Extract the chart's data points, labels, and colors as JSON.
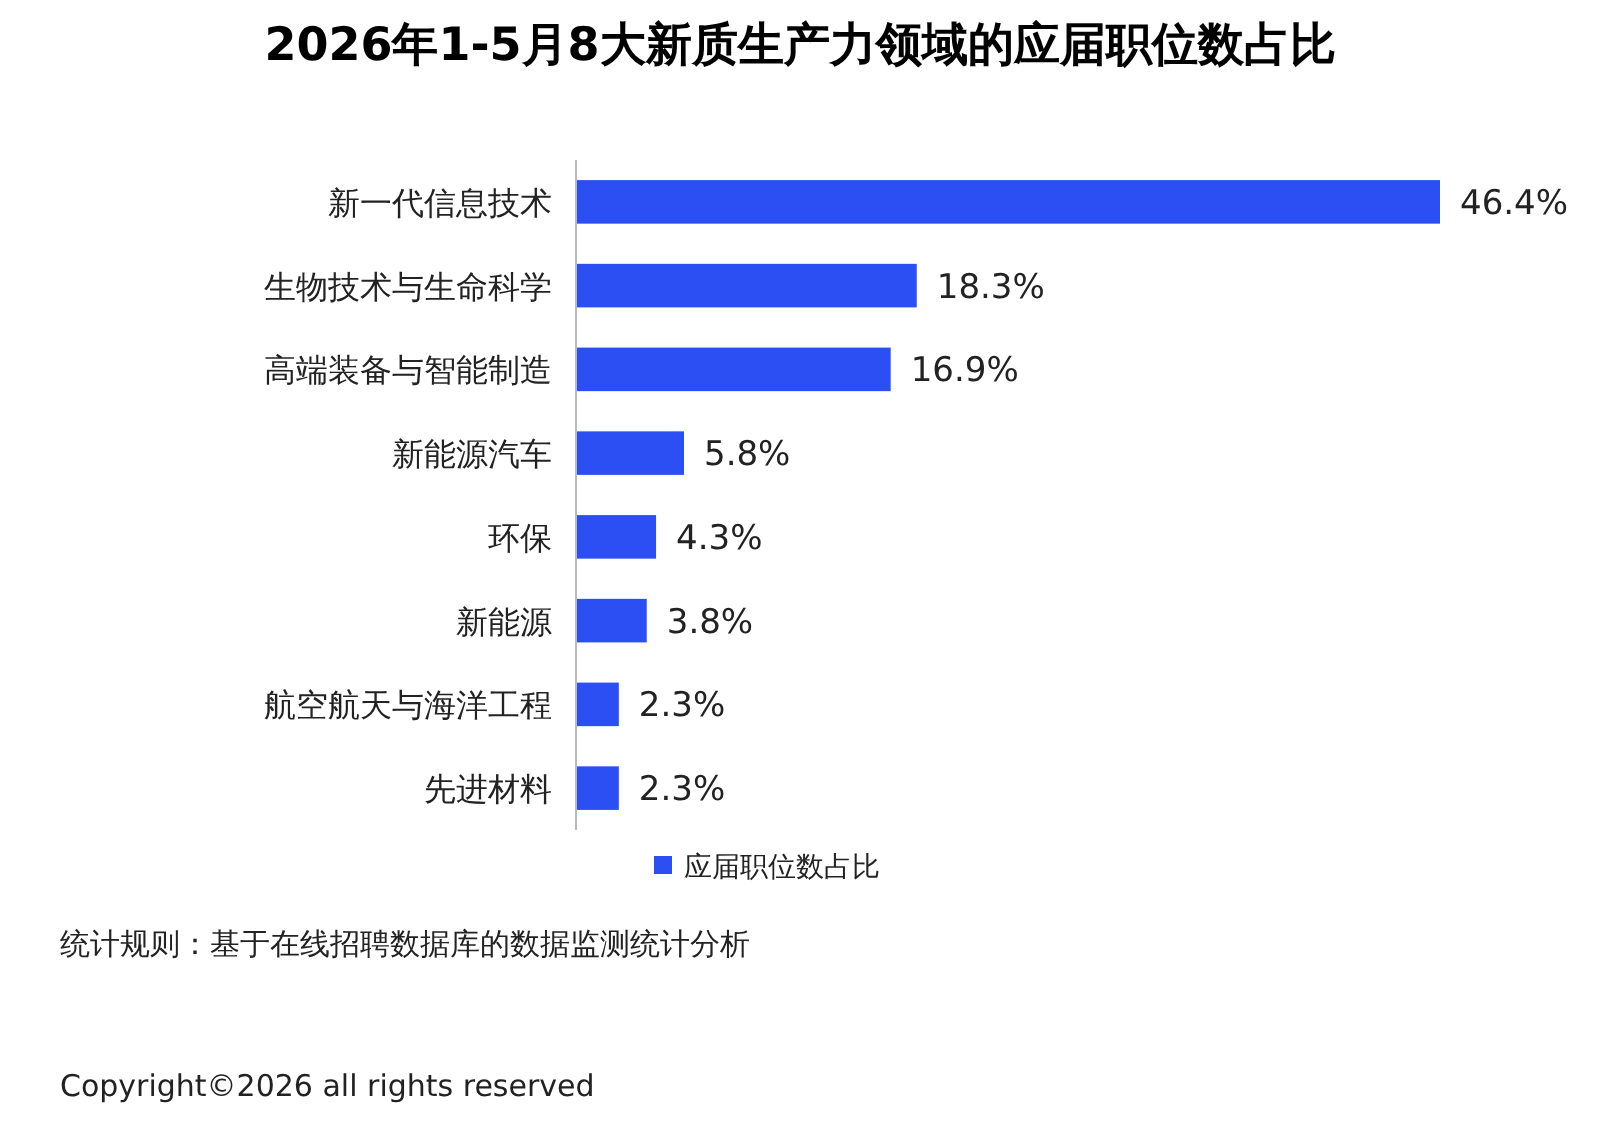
{
  "chart_data": {
    "type": "bar",
    "orientation": "horizontal",
    "title": "2026年1-5月8大新质生产力领域的应届职位数占比",
    "categories": [
      "新一代信息技术",
      "生物技术与生命科学",
      "高端装备与智能制造",
      "新能源汽车",
      "环保",
      "新能源",
      "航空航天与海洋工程",
      "先进材料"
    ],
    "series": [
      {
        "name": "应届职位数占比",
        "color": "#2b4ff2",
        "values": [
          46.4,
          18.3,
          16.9,
          5.8,
          4.3,
          3.8,
          2.3,
          2.3
        ],
        "value_labels": [
          "46.4%",
          "18.3%",
          "16.9%",
          "5.8%",
          "4.3%",
          "3.8%",
          "2.3%",
          "2.3%"
        ]
      }
    ],
    "legend": "bottom",
    "annotations": [
      "统计规则：基于在线招聘数据库的数据监测统计分析",
      "Copyright©2026 all rights reserved"
    ]
  }
}
